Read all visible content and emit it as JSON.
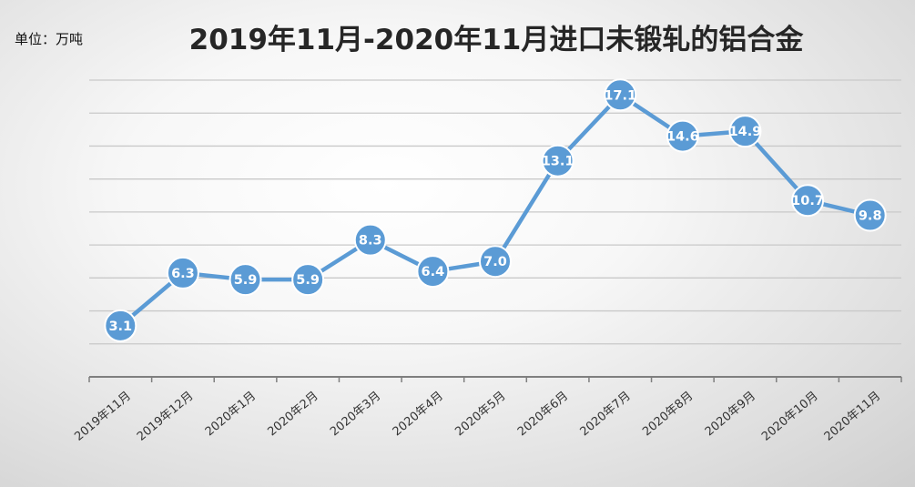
{
  "header": {
    "unit": "单位：万吨",
    "title": "2019年11月-2020年11月进口未锻轧的铝合金"
  },
  "colors": {
    "series": "#5b9bd5",
    "label_text": "#ffffff",
    "grid": "#c9c9c9",
    "axis": "#7f7f7f"
  },
  "chart_data": {
    "type": "line",
    "title": "2019年11月-2020年11月进口未锻轧的铝合金",
    "unit": "单位：万吨",
    "categories": [
      "2019年11月",
      "2019年12月",
      "2020年1月",
      "2020年2月",
      "2020年3月",
      "2020年4月",
      "2020年5月",
      "2020年6月",
      "2020年7月",
      "2020年8月",
      "2020年9月",
      "2020年10月",
      "2020年11月"
    ],
    "series": [
      {
        "values": [
          3.1,
          6.3,
          5.9,
          5.9,
          8.3,
          6.4,
          7.0,
          13.1,
          17.1,
          14.6,
          14.9,
          10.7,
          9.8
        ]
      }
    ],
    "ylim": [
      0,
      18
    ],
    "grid": true,
    "legend": "none",
    "data_labels": true
  }
}
